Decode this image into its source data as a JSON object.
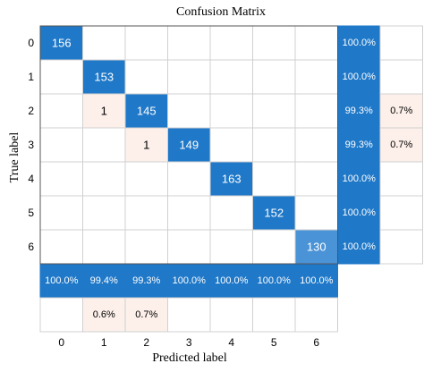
{
  "chart_data": {
    "type": "heatmap",
    "title": "Confusion Matrix",
    "xlabel": "Predicted label",
    "ylabel": "True label",
    "classes": [
      "0",
      "1",
      "2",
      "3",
      "4",
      "5",
      "6"
    ],
    "matrix": [
      [
        156,
        0,
        0,
        0,
        0,
        0,
        0
      ],
      [
        0,
        153,
        0,
        0,
        0,
        0,
        0
      ],
      [
        0,
        1,
        145,
        0,
        0,
        0,
        0
      ],
      [
        0,
        0,
        1,
        149,
        0,
        0,
        0
      ],
      [
        0,
        0,
        0,
        0,
        163,
        0,
        0
      ],
      [
        0,
        0,
        0,
        0,
        0,
        152,
        0
      ],
      [
        0,
        0,
        0,
        0,
        0,
        0,
        130
      ]
    ],
    "row_summary": [
      [
        "100.0%",
        ""
      ],
      [
        "100.0%",
        ""
      ],
      [
        "99.3%",
        "0.7%"
      ],
      [
        "99.3%",
        "0.7%"
      ],
      [
        "100.0%",
        ""
      ],
      [
        "100.0%",
        ""
      ],
      [
        "100.0%",
        ""
      ]
    ],
    "column_summary": {
      "correct": [
        "100.0%",
        "99.4%",
        "99.3%",
        "100.0%",
        "100.0%",
        "100.0%",
        "100.0%"
      ],
      "incorrect": [
        "",
        "0.6%",
        "0.7%",
        "",
        "",
        "",
        ""
      ]
    },
    "colors": {
      "diagonal_strong": "#1f78c8",
      "diagonal_light": "#4a93d6",
      "off_diagonal": "#fdf0ea",
      "grid": "#d0d0d0",
      "border": "#555555"
    }
  }
}
